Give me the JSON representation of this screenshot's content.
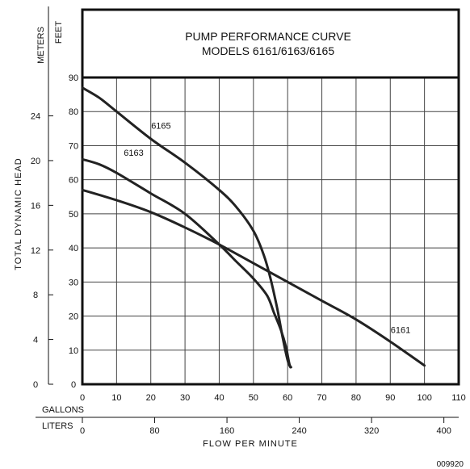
{
  "title_line1": "PUMP PERFORMANCE CURVE",
  "title_line2": "MODELS 6161/6163/6165",
  "meters_label": "METERS",
  "feet_label": "FEET",
  "yaxis_label": "TOTAL DYNAMIC HEAD",
  "gallons_label": "GALLONS",
  "liters_label": "LITERS",
  "xaxis_label": "FLOW PER MINUTE",
  "image_code": "009920",
  "chart_data": {
    "type": "line",
    "title": "PUMP PERFORMANCE CURVE MODELS 6161/6163/6165",
    "xlabel": "FLOW PER MINUTE",
    "ylabel": "TOTAL DYNAMIC HEAD",
    "xlim": [
      0,
      110
    ],
    "ylim": [
      0,
      90
    ],
    "grid": true,
    "feet_ticks": [
      0,
      10,
      20,
      30,
      40,
      50,
      60,
      70,
      80,
      90
    ],
    "meter_ticks": [
      0,
      4,
      8,
      12,
      16,
      20,
      24
    ],
    "gallon_ticks": [
      0,
      10,
      20,
      30,
      40,
      50,
      60,
      70,
      80,
      90,
      100,
      110
    ],
    "liter_ticks": [
      0,
      80,
      160,
      240,
      320,
      400
    ],
    "series": [
      {
        "name": "6165",
        "x": [
          0,
          5,
          10,
          20,
          30,
          40,
          45,
          50,
          53,
          55,
          57,
          58.5,
          60,
          60.8
        ],
        "y": [
          87,
          84,
          80,
          72,
          65,
          57,
          52,
          45,
          38,
          31,
          22,
          14,
          7,
          5
        ]
      },
      {
        "name": "6163",
        "x": [
          0,
          5,
          10,
          20,
          30,
          40,
          45,
          50,
          54,
          56,
          58,
          59.5,
          60.5,
          61
        ],
        "y": [
          66,
          64.5,
          62,
          56,
          50,
          41,
          36,
          31,
          26,
          21,
          16,
          11,
          6,
          5
        ]
      },
      {
        "name": "6161",
        "x": [
          0,
          10,
          20,
          30,
          40,
          50,
          60,
          70,
          80,
          90,
          100
        ],
        "y": [
          57,
          54,
          50.5,
          46,
          41,
          35.5,
          30,
          24.5,
          19,
          12.5,
          5.5
        ]
      }
    ],
    "label_positions": [
      {
        "name": "6165",
        "x": 23,
        "y": 75
      },
      {
        "name": "6163",
        "x": 15,
        "y": 67
      },
      {
        "name": "6161",
        "x": 93,
        "y": 15
      }
    ]
  }
}
